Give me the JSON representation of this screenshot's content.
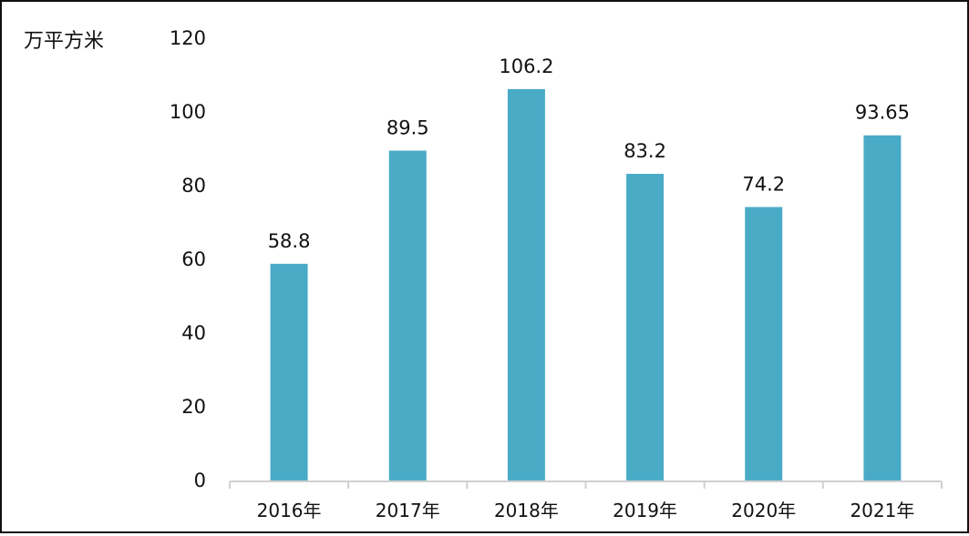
{
  "chart_data": {
    "type": "bar",
    "ylabel": "万平方米",
    "categories": [
      "2016年",
      "2017年",
      "2018年",
      "2019年",
      "2020年",
      "2021年"
    ],
    "values": [
      58.8,
      89.5,
      106.2,
      83.2,
      74.2,
      93.65
    ],
    "value_labels": [
      "58.8",
      "89.5",
      "106.2",
      "83.2",
      "74.2",
      "93.65"
    ],
    "ylim": [
      0,
      120
    ],
    "yticks": [
      0,
      20,
      40,
      60,
      80,
      100,
      120
    ],
    "grid": false,
    "legend": "none",
    "bar_color": "#4AABC7"
  }
}
